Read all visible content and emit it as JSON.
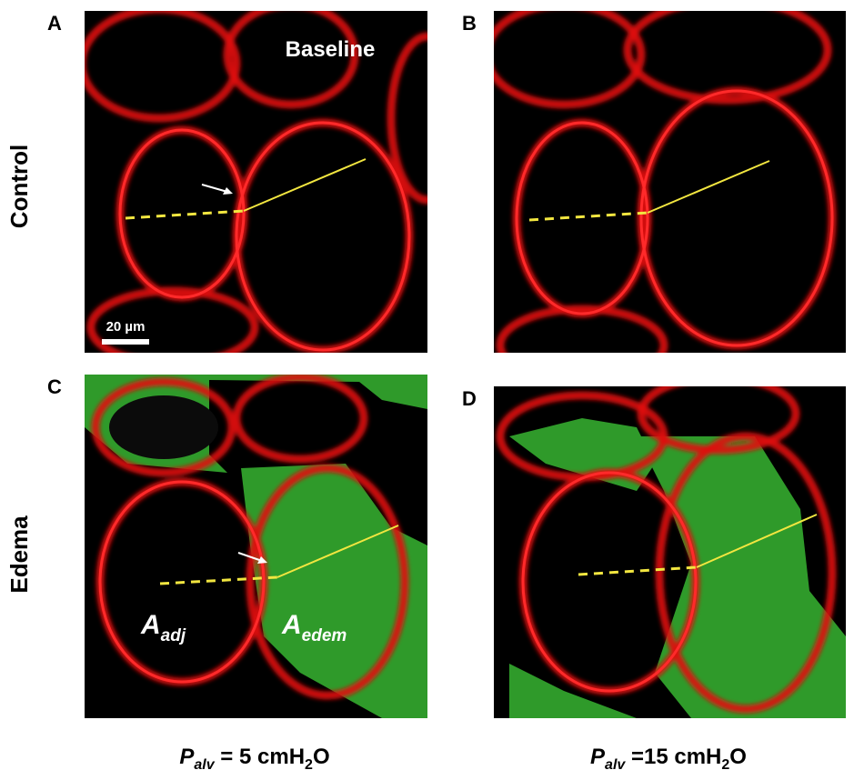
{
  "panels": [
    {
      "label": "A"
    },
    {
      "label": "B"
    },
    {
      "label": "C"
    },
    {
      "label": "D"
    }
  ],
  "row_labels": [
    "Control",
    "Edema"
  ],
  "annotations": {
    "baseline": "Baseline",
    "scale_bar": "20 µm",
    "a_adj": {
      "main": "A",
      "sub": "adj"
    },
    "a_edem": {
      "main": "A",
      "sub": "edem"
    }
  },
  "column_labels": [
    {
      "main": "P",
      "sub": "alv",
      "text": " = 5 cmH",
      "sub2": "2",
      "end": "O"
    },
    {
      "main": "P",
      "sub": "alv",
      "text": " =15 cmH",
      "sub2": "2",
      "end": "O"
    }
  ]
}
